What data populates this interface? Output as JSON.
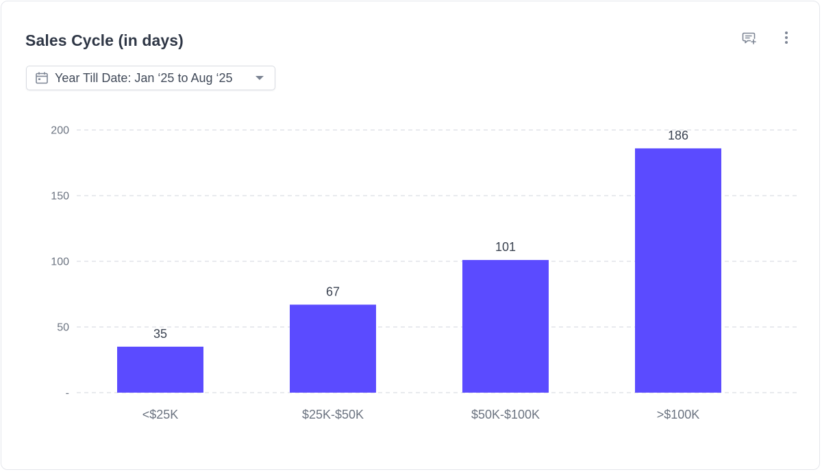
{
  "card": {
    "title": "Sales Cycle (in days)",
    "icons": {
      "comment": "add-comment-icon",
      "more": "more-vertical-icon",
      "calendar": "calendar-icon",
      "caret": "caret-down-icon"
    },
    "date_filter": {
      "label": "Year Till Date: Jan ‘25 to Aug ‘25"
    }
  },
  "colors": {
    "bar": "#5b4bff",
    "grid": "#e1e4e9",
    "text": "#2f3746",
    "muted": "#6b7380"
  },
  "chart_data": {
    "type": "bar",
    "title": "Sales Cycle (in days)",
    "categories": [
      "<$25K",
      "$25K-$50K",
      "$50K-$100K",
      ">$100K"
    ],
    "values": [
      35,
      67,
      101,
      186
    ],
    "data_labels": [
      "35",
      "67",
      "101",
      "186"
    ],
    "ylim": [
      0,
      200
    ],
    "yticks": [
      0,
      50,
      100,
      150,
      200
    ],
    "ytick_labels": [
      "-",
      "50",
      "100",
      "150",
      "200"
    ],
    "grid": true,
    "grid_style": "dashed",
    "legend": "none",
    "xlabel": "",
    "ylabel": ""
  }
}
